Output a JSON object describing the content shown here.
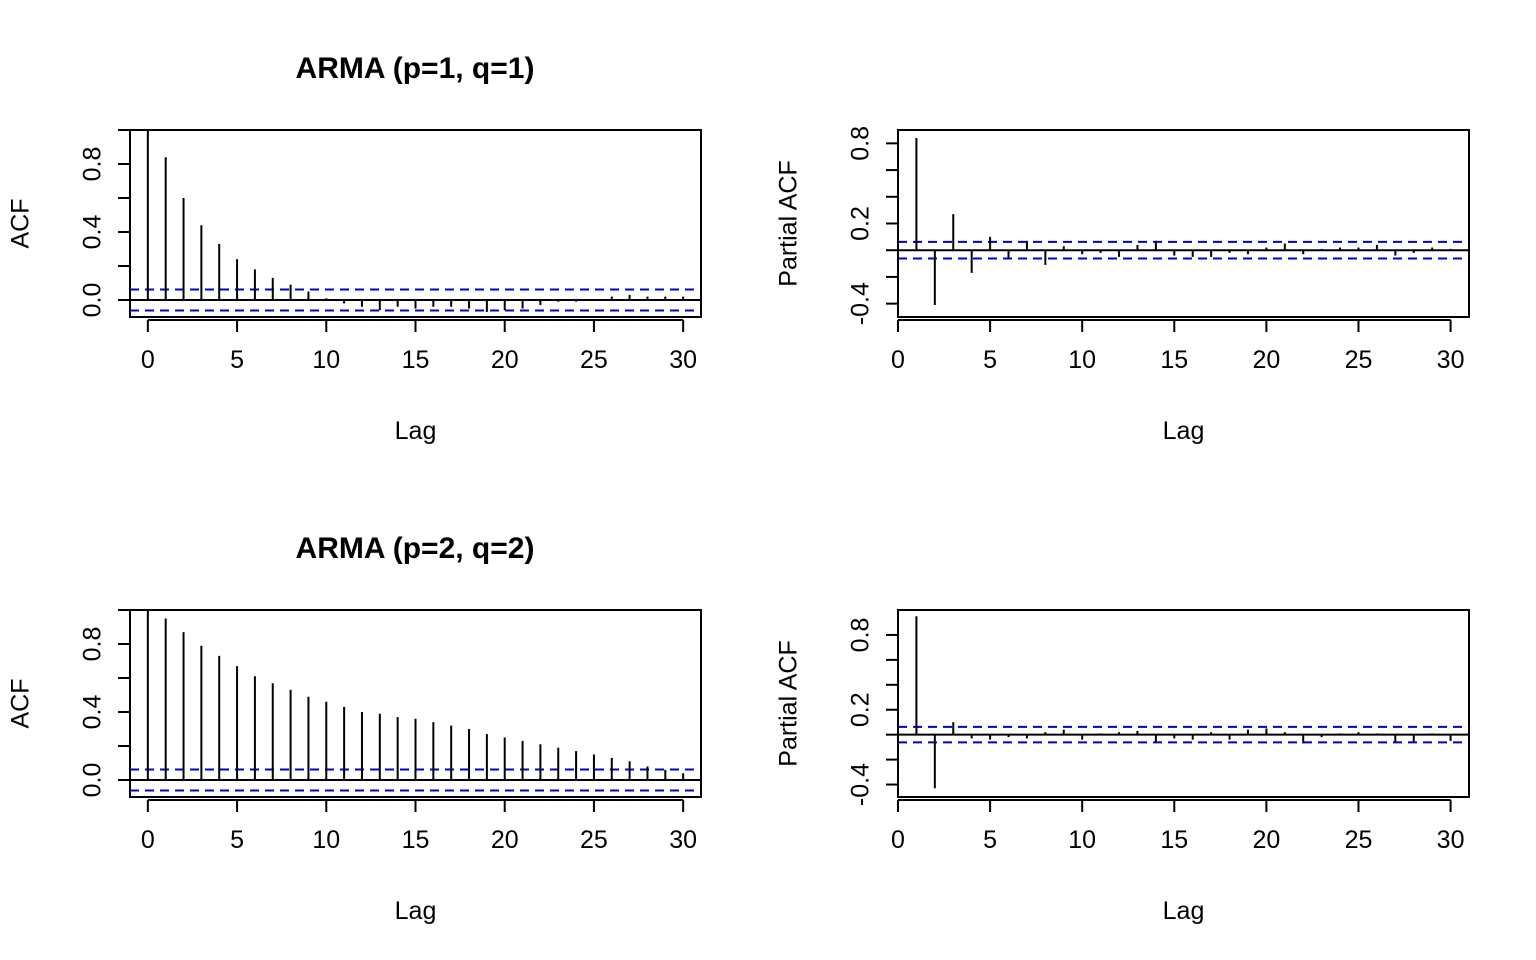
{
  "chart_data": [
    {
      "type": "bar",
      "subtype": "acf",
      "title": "ARMA (p=1, q=1)",
      "xlabel": "Lag",
      "ylabel": "ACF",
      "xlim": [
        -1,
        31
      ],
      "ylim": [
        -0.1,
        1.0
      ],
      "xticks": [
        0,
        5,
        10,
        15,
        20,
        25,
        30
      ],
      "yticks": [
        0.0,
        0.2,
        0.4,
        0.6,
        0.8,
        1.0
      ],
      "ytick_labels": [
        0.0,
        0.4,
        0.8
      ],
      "ci": 0.062,
      "ci_color": "#0000CC",
      "lags": [
        0,
        1,
        2,
        3,
        4,
        5,
        6,
        7,
        8,
        9,
        10,
        11,
        12,
        13,
        14,
        15,
        16,
        17,
        18,
        19,
        20,
        21,
        22,
        23,
        24,
        25,
        26,
        27,
        28,
        29,
        30
      ],
      "values": [
        1.0,
        0.84,
        0.6,
        0.44,
        0.33,
        0.24,
        0.18,
        0.13,
        0.09,
        0.05,
        0.01,
        -0.02,
        -0.04,
        -0.06,
        -0.04,
        -0.05,
        -0.04,
        -0.04,
        -0.05,
        -0.07,
        -0.06,
        -0.05,
        -0.03,
        -0.01,
        -0.01,
        0.0,
        0.02,
        0.03,
        0.02,
        0.02,
        0.02
      ]
    },
    {
      "type": "bar",
      "subtype": "pacf",
      "title": "",
      "xlabel": "Lag",
      "ylabel": "Partial ACF",
      "xlim": [
        0,
        31
      ],
      "ylim": [
        -0.5,
        0.9
      ],
      "xticks": [
        0,
        5,
        10,
        15,
        20,
        25,
        30
      ],
      "yticks": [
        -0.4,
        -0.2,
        0.0,
        0.2,
        0.4,
        0.6,
        0.8
      ],
      "ytick_labels": [
        -0.4,
        0.2,
        0.8
      ],
      "ci": 0.062,
      "ci_color": "#0000CC",
      "lags": [
        1,
        2,
        3,
        4,
        5,
        6,
        7,
        8,
        9,
        10,
        11,
        12,
        13,
        14,
        15,
        16,
        17,
        18,
        19,
        20,
        21,
        22,
        23,
        24,
        25,
        26,
        27,
        28,
        29,
        30
      ],
      "values": [
        0.84,
        -0.41,
        0.27,
        -0.17,
        0.1,
        -0.06,
        0.07,
        -0.11,
        0.03,
        -0.03,
        -0.02,
        -0.05,
        0.04,
        0.07,
        -0.04,
        -0.05,
        -0.05,
        -0.02,
        -0.03,
        0.02,
        0.05,
        -0.03,
        0.01,
        0.02,
        0.02,
        0.04,
        -0.04,
        -0.02,
        0.02,
        0.01
      ]
    },
    {
      "type": "bar",
      "subtype": "acf",
      "title": "ARMA (p=2, q=2)",
      "xlabel": "Lag",
      "ylabel": "ACF",
      "xlim": [
        -1,
        31
      ],
      "ylim": [
        -0.1,
        1.0
      ],
      "xticks": [
        0,
        5,
        10,
        15,
        20,
        25,
        30
      ],
      "yticks": [
        0.0,
        0.2,
        0.4,
        0.6,
        0.8,
        1.0
      ],
      "ytick_labels": [
        0.0,
        0.4,
        0.8
      ],
      "ci": 0.062,
      "ci_color": "#0000CC",
      "lags": [
        0,
        1,
        2,
        3,
        4,
        5,
        6,
        7,
        8,
        9,
        10,
        11,
        12,
        13,
        14,
        15,
        16,
        17,
        18,
        19,
        20,
        21,
        22,
        23,
        24,
        25,
        26,
        27,
        28,
        29,
        30
      ],
      "values": [
        1.0,
        0.95,
        0.87,
        0.79,
        0.73,
        0.67,
        0.61,
        0.57,
        0.53,
        0.49,
        0.46,
        0.43,
        0.4,
        0.39,
        0.37,
        0.36,
        0.34,
        0.32,
        0.3,
        0.27,
        0.25,
        0.23,
        0.21,
        0.19,
        0.17,
        0.15,
        0.13,
        0.11,
        0.08,
        0.06,
        0.04
      ]
    },
    {
      "type": "bar",
      "subtype": "pacf",
      "title": "",
      "xlabel": "Lag",
      "ylabel": "Partial ACF",
      "xlim": [
        0,
        31
      ],
      "ylim": [
        -0.5,
        1.0
      ],
      "xticks": [
        0,
        5,
        10,
        15,
        20,
        25,
        30
      ],
      "yticks": [
        -0.4,
        -0.2,
        0.0,
        0.2,
        0.4,
        0.6,
        0.8
      ],
      "ytick_labels": [
        -0.4,
        0.2,
        0.8
      ],
      "ci": 0.062,
      "ci_color": "#0000CC",
      "lags": [
        1,
        2,
        3,
        4,
        5,
        6,
        7,
        8,
        9,
        10,
        11,
        12,
        13,
        14,
        15,
        16,
        17,
        18,
        19,
        20,
        21,
        22,
        23,
        24,
        25,
        26,
        27,
        28,
        29,
        30
      ],
      "values": [
        0.95,
        -0.43,
        0.1,
        -0.03,
        -0.04,
        -0.02,
        -0.03,
        0.02,
        0.04,
        -0.04,
        0.01,
        0.02,
        0.03,
        -0.06,
        -0.03,
        -0.04,
        0.02,
        -0.04,
        0.04,
        0.05,
        0.02,
        -0.07,
        -0.02,
        0.01,
        0.02,
        0.01,
        -0.06,
        -0.06,
        0.01,
        -0.05
      ]
    }
  ]
}
